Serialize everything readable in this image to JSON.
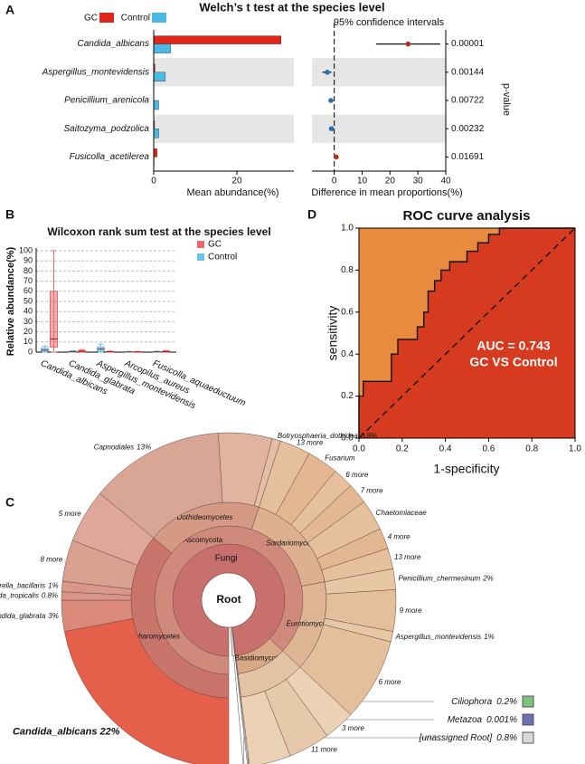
{
  "chart_data": [
    {
      "type": "bar",
      "panel_label": "A",
      "title": "Welch’s t test at the species level",
      "categories": [
        "Candida_albicans",
        "Aspergillus_montevidensis",
        "Penicillium_arenicola",
        "Saitozyma_podzolica",
        "Fusicolla_acetilerea"
      ],
      "series": [
        {
          "name": "GC",
          "color": "#e0251b",
          "values": [
            30.6,
            0.3,
            0,
            0.2,
            0.8
          ]
        },
        {
          "name": "Control",
          "color": "#4cb8e4",
          "values": [
            4.1,
            2.8,
            1.2,
            1.2,
            0.1
          ]
        }
      ],
      "xlim": [
        0,
        33.7
      ],
      "xticks": [
        0,
        20
      ],
      "xlabel": "Mean abundance(%)",
      "band_color": "#e6e6e6"
    },
    {
      "type": "errorbar",
      "subtitle": "95% confidence intervals",
      "values": [
        26.5,
        -2.5,
        -1.2,
        -1.0,
        0.7
      ],
      "ci_low": [
        15,
        -4.2,
        -2,
        -1.8,
        0.2
      ],
      "ci_high": [
        38,
        -1,
        -0.4,
        -0.3,
        1.2
      ],
      "colors": [
        "#b5301f",
        "#2a6fb0",
        "#2a6fb0",
        "#2a6fb0",
        "#b5301f"
      ],
      "xlim": [
        -8,
        40
      ],
      "xticks": [
        0,
        10,
        20,
        30,
        40
      ],
      "xlabel": "Difference in mean proportions(%)",
      "p_values": [
        "0.00001",
        "0.00144",
        "0.00722",
        "0.00232",
        "0.01691"
      ],
      "p_label": "p-value",
      "band_color": "#e6e6e6"
    },
    {
      "type": "box",
      "panel_label": "B",
      "title": "Wilcoxon rank sum test at the species level",
      "ylabel": "Relative abundance(%)",
      "categories": [
        "Candida_albicans",
        "Candida_glabrata",
        "Aspergillus_montevidensis",
        "Arcopilus_aureus",
        "Fusicolla_aquaeductuum"
      ],
      "series": [
        {
          "name": "GC",
          "color": "#e86a6a",
          "values": [
            [
              0,
              5,
              13,
              60,
              100
            ],
            [
              0,
              0.3,
              0.8,
              1.5,
              2.5
            ],
            [
              0,
              0.1,
              0.3,
              0.6,
              1
            ],
            [
              0,
              0.1,
              0.2,
              0.4,
              0.6
            ],
            [
              0,
              0.2,
              0.5,
              1,
              1.5
            ]
          ]
        },
        {
          "name": "Control",
          "color": "#6ec3ec",
          "values": [
            [
              0,
              1,
              2,
              4,
              6
            ],
            [
              0,
              0.2,
              0.5,
              1,
              1.5
            ],
            [
              0,
              1,
              3,
              5,
              8
            ],
            [
              0,
              0.1,
              0.2,
              0.4,
              0.8
            ],
            [
              0,
              0.1,
              0.3,
              0.6,
              1
            ]
          ]
        }
      ],
      "ylim": [
        0,
        100
      ],
      "yticks": [
        0,
        10,
        20,
        30,
        40,
        50,
        60,
        70,
        80,
        90,
        100
      ],
      "grid": true
    },
    {
      "type": "line",
      "panel_label": "D",
      "title": "ROC curve analysis",
      "xlabel": "1-specificity",
      "ylabel": "sensitivity",
      "x": [
        0,
        0,
        0.02,
        0.02,
        0.15,
        0.15,
        0.18,
        0.18,
        0.27,
        0.27,
        0.3,
        0.3,
        0.32,
        0.32,
        0.35,
        0.35,
        0.38,
        0.38,
        0.42,
        0.42,
        0.5,
        0.5,
        0.55,
        0.55,
        0.6,
        0.6,
        0.65,
        0.65,
        1
      ],
      "values": [
        0,
        0.2,
        0.2,
        0.27,
        0.27,
        0.4,
        0.4,
        0.47,
        0.47,
        0.53,
        0.53,
        0.6,
        0.6,
        0.7,
        0.7,
        0.75,
        0.75,
        0.8,
        0.8,
        0.84,
        0.84,
        0.89,
        0.89,
        0.93,
        0.93,
        0.97,
        0.97,
        1,
        1
      ],
      "xlim": [
        0,
        1
      ],
      "ylim": [
        0,
        1
      ],
      "xticks": [
        {
          "value": 0,
          "label": "0.0"
        },
        0.2,
        0.4,
        0.6,
        0.8,
        {
          "value": 1,
          "label": "1.0"
        }
      ],
      "yticks": [
        {
          "value": 0,
          "label": "0.0"
        },
        0.2,
        0.4,
        0.6,
        0.8,
        {
          "value": 1,
          "label": "1.0"
        }
      ],
      "annotations": [
        "AUC = 0.743",
        "GC VS Control"
      ],
      "color": "#111111",
      "fill_above": "#e88b3f",
      "fill_below": "#d63a1f"
    },
    {
      "type": "sunburst",
      "panel_label": "C",
      "root": "Root",
      "rings": [
        [
          {
            "name": "Fungi",
            "value": 98,
            "color": "#c8706e"
          },
          {
            "name": "Ciliophora",
            "value": 0.2,
            "value_label": "0.2%",
            "color": "#7cc47c"
          },
          {
            "name": "Metazoa",
            "value": 0.001,
            "value_label": "0.001%",
            "color": "#6f6fb8"
          },
          {
            "name": "[unassigned Root]",
            "value": 0.8,
            "value_label": "0.8%",
            "color": "#d9d9d9"
          }
        ],
        [
          {
            "name": "Ascomycota",
            "value": 87,
            "color": "#cf8a7c"
          },
          {
            "name": "Basidiomycota",
            "value": 11,
            "color": "#d9a886"
          }
        ],
        [
          {
            "name": "Saccharomycetes",
            "value": 36,
            "color": "#c9756c"
          },
          {
            "name": "Dothideomycetes",
            "value": 19,
            "color": "#d49a86"
          },
          {
            "name": "Sordariomycetes",
            "value": 17,
            "color": "#ddb08f"
          },
          {
            "name": "Eurotiomycetes",
            "value": 15,
            "color": "#ddb595"
          },
          {
            "name": null,
            "value": 11,
            "color": "#e3c3a6"
          }
        ],
        [
          {
            "name": "Candida_albicans",
            "value": 22,
            "value_label": "22%",
            "color": "#e5604a"
          },
          {
            "name": "Candida_glabrata",
            "value": 3,
            "value_label": "3%",
            "color": "#d98a7a"
          },
          {
            "name": "Candida_tropicalis",
            "value": 0.8,
            "value_label": "0.8%",
            "color": "#d8958a"
          },
          {
            "name": "Starmerella_bacillaris",
            "value": 1,
            "value_label": "1%",
            "color": "#d9968b"
          },
          {
            "name": "8 more",
            "value": 4,
            "color": "#d9a090"
          },
          {
            "name": "5 more",
            "value": 5.2,
            "color": "#dfa79a"
          },
          {
            "name": "Capnodiales",
            "value": 13,
            "value_label": "13%",
            "color": "#d9a595"
          },
          {
            "name": null,
            "value": 5.2,
            "color": "#e0b49f"
          },
          {
            "name": "Botryosphaeria_dothidea",
            "value": 0.8,
            "value_label": "0.8%",
            "color": "#e4bea6"
          },
          {
            "name": "13 more",
            "value": 3,
            "color": "#e6c09c"
          },
          {
            "name": "Fusarium",
            "value": 3,
            "color": "#e2b792"
          },
          {
            "name": "6 more",
            "value": 2,
            "color": "#e6c09c"
          },
          {
            "name": "7 more",
            "value": 2,
            "color": "#e2b792"
          },
          {
            "name": "Chaetomiaceae",
            "value": 3,
            "color": "#e6c09c"
          },
          {
            "name": "4 more",
            "value": 2,
            "color": "#e2b792"
          },
          {
            "name": "13 more",
            "value": 2,
            "color": "#e6c09c"
          },
          {
            "name": "Penicillium_chermesinum",
            "value": 2,
            "value_label": "2%",
            "color": "#e8c7a5"
          },
          {
            "name": "9 more",
            "value": 4,
            "color": "#e4bf9c"
          },
          {
            "name": "Aspergillus_montevidensis",
            "value": 1,
            "value_label": "1%",
            "color": "#e8c7a5"
          },
          {
            "name": "6 more",
            "value": 8,
            "color": "#e4bf9c"
          },
          {
            "name": "3 more",
            "value": 3,
            "color": "#ecd2b5"
          },
          {
            "name": "11 more",
            "value": 4,
            "color": "#e6c9aa"
          },
          {
            "name": null,
            "value": 4,
            "color": "#ecd2b5"
          }
        ]
      ]
    }
  ]
}
